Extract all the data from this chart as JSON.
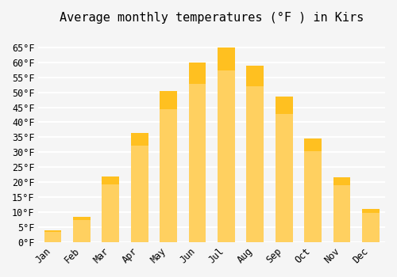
{
  "title": "Average monthly temperatures (°F ) in Kirs",
  "months": [
    "Jan",
    "Feb",
    "Mar",
    "Apr",
    "May",
    "Jun",
    "Jul",
    "Aug",
    "Sep",
    "Oct",
    "Nov",
    "Dec"
  ],
  "values": [
    4,
    8.5,
    22,
    36.5,
    50.5,
    60,
    65,
    59,
    48.5,
    34.5,
    21.5,
    11
  ],
  "bar_color_top": "#FFC020",
  "bar_color_bottom": "#FFD060",
  "ylim": [
    0,
    70
  ],
  "yticks": [
    0,
    5,
    10,
    15,
    20,
    25,
    30,
    35,
    40,
    45,
    50,
    55,
    60,
    65
  ],
  "ytick_labels": [
    "0°F",
    "5°F",
    "10°F",
    "15°F",
    "20°F",
    "25°F",
    "30°F",
    "35°F",
    "40°F",
    "45°F",
    "50°F",
    "55°F",
    "60°F",
    "65°F"
  ],
  "background_color": "#F5F5F5",
  "grid_color": "#FFFFFF",
  "title_fontsize": 11,
  "tick_fontsize": 8.5,
  "font_family": "monospace"
}
